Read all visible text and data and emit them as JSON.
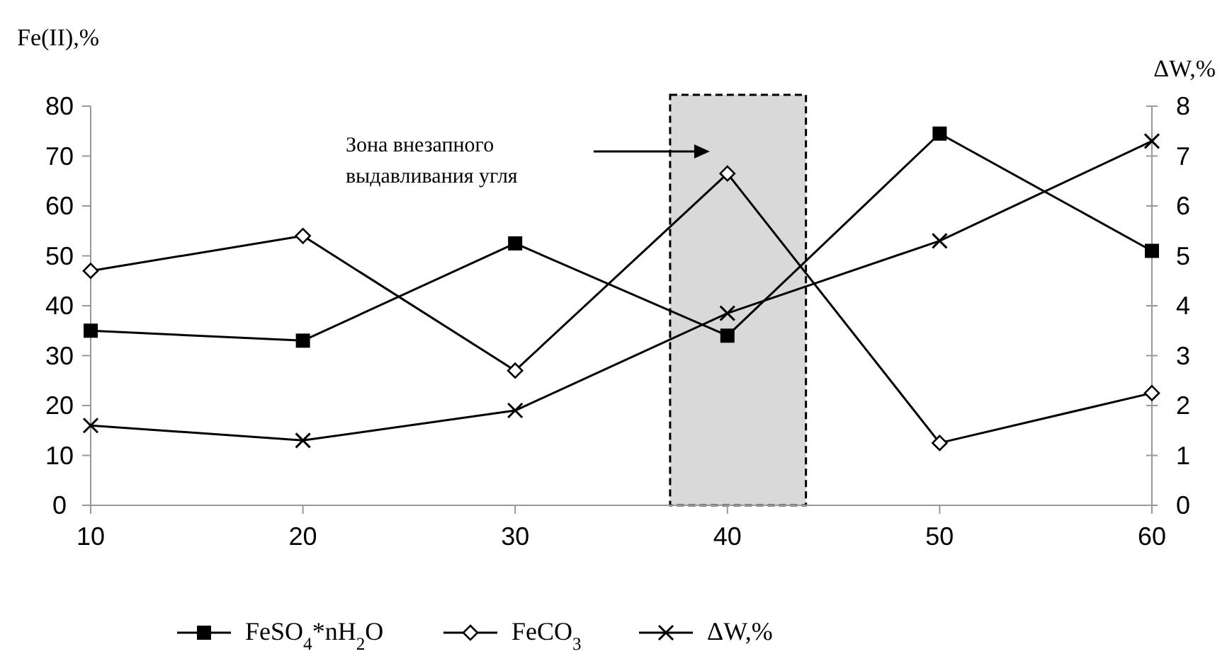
{
  "chart_data": {
    "type": "line",
    "ylabel": "Fe(II),%",
    "y2label": "ΔW,%",
    "x": [
      10,
      20,
      30,
      40,
      50,
      60
    ],
    "xlim": [
      10,
      60
    ],
    "xticks": [
      10,
      20,
      30,
      40,
      50,
      60
    ],
    "ylim": [
      0,
      80
    ],
    "yticks": [
      0,
      10,
      20,
      30,
      40,
      50,
      60,
      70,
      80
    ],
    "y2lim": [
      0,
      8
    ],
    "y2ticks": [
      0,
      1,
      2,
      3,
      4,
      5,
      6,
      7,
      8
    ],
    "series": [
      {
        "name": "FeSO$_{4}$*nH$_{2}$O",
        "color": "#000000",
        "marker": "square",
        "values": [
          35,
          33,
          52.5,
          34,
          74.5,
          51
        ]
      },
      {
        "name": "FeCO$_{3}$",
        "color": "#000000",
        "marker": "diamond",
        "values": [
          47,
          54,
          27,
          66.5,
          12.5,
          22.5
        ]
      },
      {
        "name": "ΔW,%",
        "color": "#000000",
        "marker": "cross",
        "axis": "y2",
        "values": [
          1.6,
          1.3,
          1.9,
          3.85,
          5.3,
          7.3
        ]
      }
    ],
    "bands": [
      {
        "axis": "x",
        "from": 37.3,
        "to": 43.7,
        "color": "#d9d9d9"
      }
    ],
    "annotations": [
      "Зона внезапного выдавливания угля"
    ],
    "grid": false,
    "legend": "bottom"
  }
}
